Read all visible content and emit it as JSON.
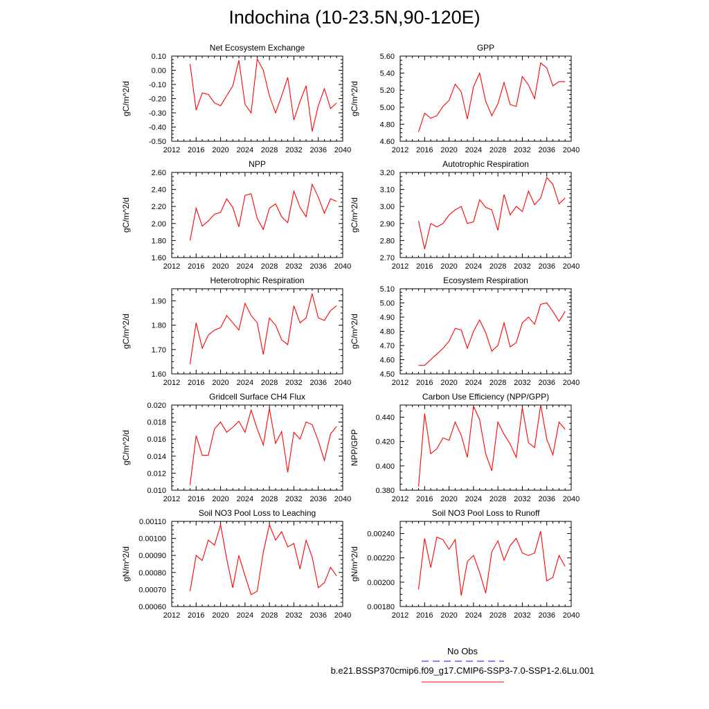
{
  "page": {
    "title": "Indochina (10-23.5N,90-120E)"
  },
  "legend": {
    "entries": [
      {
        "label": "No Obs",
        "color": "#0000ff",
        "style": "dashed"
      },
      {
        "label": "b.e21.BSSP370cmip6.f09_g17.CMIP6-SSP3-7.0-SSP1-2.6Lu.001",
        "color": "#ff0000",
        "style": "solid"
      }
    ]
  },
  "chart_data": [
    {
      "type": "line",
      "title": "Net Ecosystem Exchange",
      "ylabel": "gC/m^2/d",
      "xlim": [
        2012,
        2040
      ],
      "ylim": [
        -0.5,
        0.1
      ],
      "xticks": [
        "2012",
        "2016",
        "2020",
        "2024",
        "2028",
        "2032",
        "2036",
        "2040"
      ],
      "yticks": [
        "0.10",
        "0.00",
        "-0.10",
        "-0.20",
        "-0.30",
        "-0.40",
        "-0.50"
      ],
      "x": [
        2015,
        2016,
        2017,
        2018,
        2019,
        2020,
        2021,
        2022,
        2023,
        2024,
        2025,
        2026,
        2027,
        2028,
        2029,
        2030,
        2031,
        2032,
        2033,
        2034,
        2035,
        2036,
        2037,
        2038,
        2039
      ],
      "series": [
        {
          "color": "#ff0000",
          "values": [
            0.045,
            -0.28,
            -0.16,
            -0.17,
            -0.23,
            -0.25,
            -0.18,
            -0.11,
            0.07,
            -0.24,
            -0.3,
            0.08,
            0.0,
            -0.18,
            -0.3,
            -0.18,
            -0.05,
            -0.35,
            -0.22,
            -0.11,
            -0.43,
            -0.25,
            -0.13,
            -0.27,
            -0.23
          ]
        }
      ]
    },
    {
      "type": "line",
      "title": "GPP",
      "ylabel": "gC/m^2/d",
      "xlim": [
        2012,
        2040
      ],
      "ylim": [
        4.6,
        5.6
      ],
      "xticks": [
        "2012",
        "2016",
        "2020",
        "2024",
        "2028",
        "2032",
        "2036",
        "2040"
      ],
      "yticks": [
        "5.60",
        "5.40",
        "5.20",
        "5.00",
        "4.80",
        "4.60"
      ],
      "x": [
        2015,
        2016,
        2017,
        2018,
        2019,
        2020,
        2021,
        2022,
        2023,
        2024,
        2025,
        2026,
        2027,
        2028,
        2029,
        2030,
        2031,
        2032,
        2033,
        2034,
        2035,
        2036,
        2037,
        2038,
        2039
      ],
      "series": [
        {
          "color": "#ff0000",
          "values": [
            4.71,
            4.93,
            4.87,
            4.9,
            5.01,
            5.08,
            5.27,
            5.18,
            4.86,
            5.24,
            5.4,
            5.07,
            4.9,
            5.04,
            5.29,
            5.03,
            5.01,
            5.36,
            5.26,
            5.1,
            5.52,
            5.46,
            5.25,
            5.3,
            5.3
          ]
        }
      ]
    },
    {
      "type": "line",
      "title": "NPP",
      "ylabel": "gC/m^2/d",
      "xlim": [
        2012,
        2040
      ],
      "ylim": [
        1.6,
        2.6
      ],
      "xticks": [
        "2012",
        "2016",
        "2020",
        "2024",
        "2028",
        "2032",
        "2036",
        "2040"
      ],
      "yticks": [
        "2.60",
        "2.40",
        "2.20",
        "2.00",
        "1.80",
        "1.60"
      ],
      "x": [
        2015,
        2016,
        2017,
        2018,
        2019,
        2020,
        2021,
        2022,
        2023,
        2024,
        2025,
        2026,
        2027,
        2028,
        2029,
        2030,
        2031,
        2032,
        2033,
        2034,
        2035,
        2036,
        2037,
        2038,
        2039
      ],
      "series": [
        {
          "color": "#ff0000",
          "values": [
            1.8,
            2.18,
            1.97,
            2.03,
            2.11,
            2.13,
            2.29,
            2.19,
            1.96,
            2.33,
            2.35,
            2.06,
            1.93,
            2.18,
            2.23,
            2.08,
            2.01,
            2.38,
            2.19,
            2.08,
            2.46,
            2.31,
            2.12,
            2.29,
            2.26
          ]
        }
      ]
    },
    {
      "type": "line",
      "title": "Autotrophic Respiration",
      "ylabel": "gC/m^2/d",
      "xlim": [
        2012,
        2040
      ],
      "ylim": [
        2.7,
        3.2
      ],
      "xticks": [
        "2012",
        "2016",
        "2020",
        "2024",
        "2028",
        "2032",
        "2036",
        "2040"
      ],
      "yticks": [
        "3.20",
        "3.10",
        "3.00",
        "2.90",
        "2.80",
        "2.70"
      ],
      "x": [
        2015,
        2016,
        2017,
        2018,
        2019,
        2020,
        2021,
        2022,
        2023,
        2024,
        2025,
        2026,
        2027,
        2028,
        2029,
        2030,
        2031,
        2032,
        2033,
        2034,
        2035,
        2036,
        2037,
        2038,
        2039
      ],
      "series": [
        {
          "color": "#ff0000",
          "values": [
            2.915,
            2.75,
            2.9,
            2.88,
            2.9,
            2.95,
            2.98,
            3.0,
            2.9,
            2.91,
            3.04,
            2.995,
            2.98,
            2.86,
            3.07,
            2.95,
            3.0,
            2.97,
            3.09,
            3.01,
            3.05,
            3.17,
            3.13,
            3.015,
            3.05
          ]
        }
      ]
    },
    {
      "type": "line",
      "title": "Heterotrophic Respiration",
      "ylabel": "gC/m^2/d",
      "xlim": [
        2012,
        2040
      ],
      "ylim": [
        1.6,
        1.95
      ],
      "xticks": [
        "2012",
        "2016",
        "2020",
        "2024",
        "2028",
        "2032",
        "2036",
        "2040"
      ],
      "yticks": [
        "1.90",
        "1.80",
        "1.70",
        "1.60"
      ],
      "x": [
        2015,
        2016,
        2017,
        2018,
        2019,
        2020,
        2021,
        2022,
        2023,
        2024,
        2025,
        2026,
        2027,
        2028,
        2029,
        2030,
        2031,
        2032,
        2033,
        2034,
        2035,
        2036,
        2037,
        2038,
        2039
      ],
      "series": [
        {
          "color": "#ff0000",
          "values": [
            1.64,
            1.81,
            1.705,
            1.76,
            1.78,
            1.79,
            1.84,
            1.81,
            1.78,
            1.89,
            1.84,
            1.81,
            1.68,
            1.83,
            1.8,
            1.74,
            1.72,
            1.88,
            1.81,
            1.83,
            1.93,
            1.83,
            1.82,
            1.86,
            1.88
          ]
        }
      ]
    },
    {
      "type": "line",
      "title": "Ecosystem Respiration",
      "ylabel": "gC/m^2/d",
      "xlim": [
        2012,
        2040
      ],
      "ylim": [
        4.5,
        5.1
      ],
      "xticks": [
        "2012",
        "2016",
        "2020",
        "2024",
        "2028",
        "2032",
        "2036",
        "2040"
      ],
      "yticks": [
        "5.10",
        "5.00",
        "4.90",
        "4.80",
        "4.70",
        "4.60",
        "4.50"
      ],
      "x": [
        2015,
        2016,
        2017,
        2018,
        2019,
        2020,
        2021,
        2022,
        2023,
        2024,
        2025,
        2026,
        2027,
        2028,
        2029,
        2030,
        2031,
        2032,
        2033,
        2034,
        2035,
        2036,
        2037,
        2038,
        2039
      ],
      "series": [
        {
          "color": "#ff0000",
          "values": [
            4.56,
            4.56,
            4.6,
            4.64,
            4.68,
            4.73,
            4.82,
            4.81,
            4.68,
            4.8,
            4.88,
            4.79,
            4.66,
            4.7,
            4.86,
            4.69,
            4.72,
            4.86,
            4.9,
            4.85,
            4.99,
            5.0,
            4.94,
            4.87,
            4.94
          ]
        }
      ]
    },
    {
      "type": "line",
      "title": "Gridcell Surface CH4 Flux",
      "ylabel": "gC/m^2/d",
      "xlim": [
        2012,
        2040
      ],
      "ylim": [
        0.01,
        0.02
      ],
      "xticks": [
        "2012",
        "2016",
        "2020",
        "2024",
        "2028",
        "2032",
        "2036",
        "2040"
      ],
      "yticks": [
        "0.020",
        "0.018",
        "0.016",
        "0.014",
        "0.012",
        "0.010"
      ],
      "x": [
        2015,
        2016,
        2017,
        2018,
        2019,
        2020,
        2021,
        2022,
        2023,
        2024,
        2025,
        2026,
        2027,
        2028,
        2029,
        2030,
        2031,
        2032,
        2033,
        2034,
        2035,
        2036,
        2037,
        2038,
        2039
      ],
      "series": [
        {
          "color": "#ff0000",
          "values": [
            0.0106,
            0.0164,
            0.0141,
            0.0141,
            0.0172,
            0.018,
            0.0168,
            0.0174,
            0.0181,
            0.0168,
            0.0194,
            0.0172,
            0.0153,
            0.0196,
            0.0155,
            0.0169,
            0.0121,
            0.0168,
            0.016,
            0.018,
            0.0177,
            0.0158,
            0.0135,
            0.0166,
            0.0175
          ]
        }
      ]
    },
    {
      "type": "line",
      "title": "Carbon Use Efficiency (NPP/GPP)",
      "ylabel": "NPP/GPP",
      "xlim": [
        2012,
        2040
      ],
      "ylim": [
        0.38,
        0.45
      ],
      "xticks": [
        "2012",
        "2016",
        "2020",
        "2024",
        "2028",
        "2032",
        "2036",
        "2040"
      ],
      "yticks": [
        "0.440",
        "0.420",
        "0.400",
        "0.380"
      ],
      "x": [
        2015,
        2016,
        2017,
        2018,
        2019,
        2020,
        2021,
        2022,
        2023,
        2024,
        2025,
        2026,
        2027,
        2028,
        2029,
        2030,
        2031,
        2032,
        2033,
        2034,
        2035,
        2036,
        2037,
        2038,
        2039
      ],
      "series": [
        {
          "color": "#ff0000",
          "values": [
            0.383,
            0.443,
            0.41,
            0.414,
            0.423,
            0.421,
            0.436,
            0.425,
            0.407,
            0.449,
            0.438,
            0.41,
            0.396,
            0.436,
            0.426,
            0.418,
            0.407,
            0.448,
            0.419,
            0.415,
            0.45,
            0.422,
            0.409,
            0.436,
            0.43
          ]
        }
      ]
    },
    {
      "type": "line",
      "title": "Soil NO3 Pool Loss to Leaching",
      "ylabel": "gN/m^2/d",
      "xlim": [
        2012,
        2040
      ],
      "ylim": [
        0.0006,
        0.0011
      ],
      "xticks": [
        "2012",
        "2016",
        "2020",
        "2024",
        "2028",
        "2032",
        "2036",
        "2040"
      ],
      "yticks": [
        "0.00110",
        "0.00100",
        "0.00090",
        "0.00080",
        "0.00070",
        "0.00060"
      ],
      "x": [
        2015,
        2016,
        2017,
        2018,
        2019,
        2020,
        2021,
        2022,
        2023,
        2024,
        2025,
        2026,
        2027,
        2028,
        2029,
        2030,
        2031,
        2032,
        2033,
        2034,
        2035,
        2036,
        2037,
        2038,
        2039
      ],
      "series": [
        {
          "color": "#ff0000",
          "values": [
            0.00069,
            0.0009,
            0.00087,
            0.00099,
            0.00096,
            0.00108,
            0.00088,
            0.00071,
            0.0009,
            0.00078,
            0.00067,
            0.00069,
            0.00092,
            0.00108,
            0.00099,
            0.00104,
            0.00095,
            0.00097,
            0.00082,
            0.00099,
            0.00089,
            0.00071,
            0.00074,
            0.00083,
            0.00078
          ]
        }
      ]
    },
    {
      "type": "line",
      "title": "Soil NO3 Pool Loss to Runoff",
      "ylabel": "gN/m^2/d",
      "xlim": [
        2012,
        2040
      ],
      "ylim": [
        0.0018,
        0.0025
      ],
      "xticks": [
        "2012",
        "2016",
        "2020",
        "2024",
        "2028",
        "2032",
        "2036",
        "2040"
      ],
      "yticks": [
        "0.00240",
        "0.00220",
        "0.00200",
        "0.00180"
      ],
      "x": [
        2015,
        2016,
        2017,
        2018,
        2019,
        2020,
        2021,
        2022,
        2023,
        2024,
        2025,
        2026,
        2027,
        2028,
        2029,
        2030,
        2031,
        2032,
        2033,
        2034,
        2035,
        2036,
        2037,
        2038,
        2039
      ],
      "series": [
        {
          "color": "#ff0000",
          "values": [
            0.00194,
            0.00236,
            0.00212,
            0.00237,
            0.00235,
            0.00227,
            0.00235,
            0.00189,
            0.00217,
            0.00222,
            0.00208,
            0.00191,
            0.00225,
            0.00234,
            0.00218,
            0.0023,
            0.00236,
            0.00224,
            0.00222,
            0.00224,
            0.00242,
            0.00201,
            0.00204,
            0.00222,
            0.00213
          ]
        }
      ]
    }
  ]
}
